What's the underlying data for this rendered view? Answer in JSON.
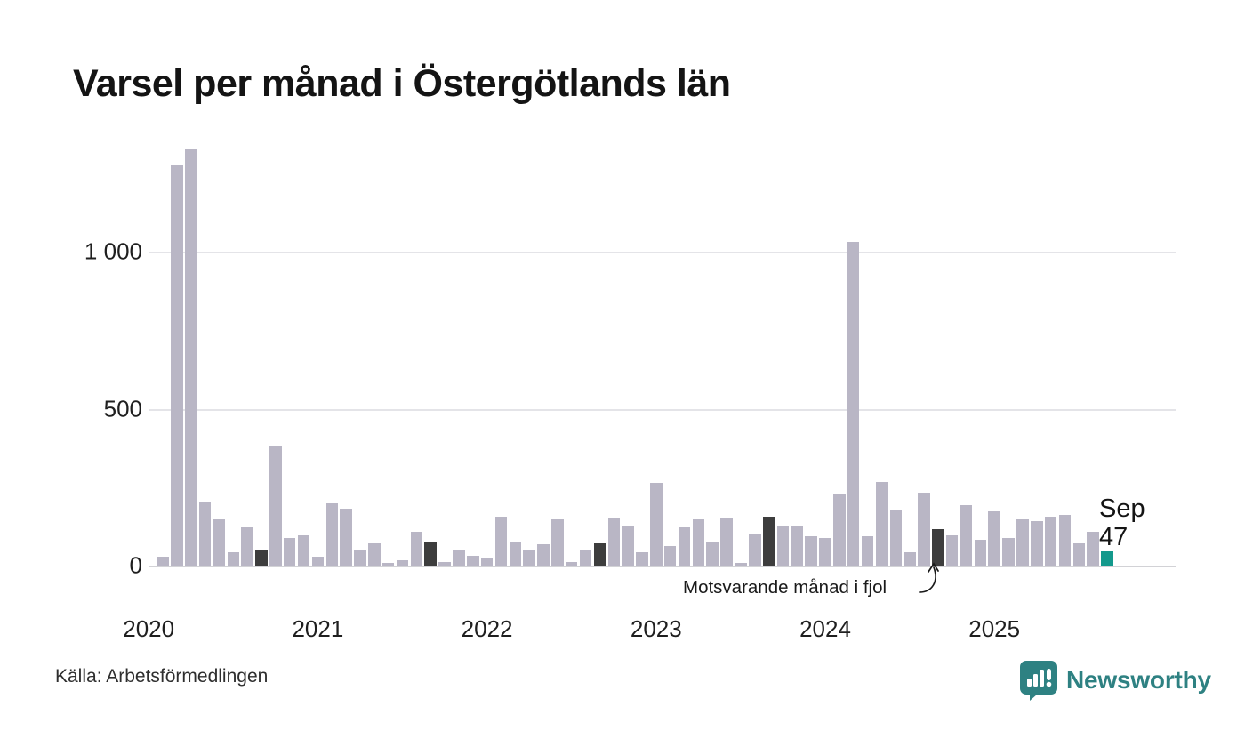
{
  "title": "Varsel per månad i Östergötlands län",
  "source": "Källa: Arbetsförmedlingen",
  "annotation": "Motsvarande månad i fjol",
  "current_point_label": {
    "line1": "Sep",
    "line2": "47"
  },
  "logo": {
    "text": "Newsworthy",
    "icon": "newsworthy-speech-bubble-bar-chart-icon"
  },
  "colors": {
    "bar": "#b9b6c5",
    "bar_dark": "#3d3d3d",
    "bar_current": "#13998c",
    "grid": "#e4e4e8",
    "baseline": "#d2d2d6",
    "text": "#1f1f1f",
    "logo_teal": "#2e8182"
  },
  "chart_data": {
    "type": "bar",
    "title": "Varsel per månad i Östergötlands län",
    "xlabel": "",
    "ylabel": "",
    "ylim": [
      0,
      1400
    ],
    "yticks": [
      0,
      500,
      1000
    ],
    "ytick_labels": [
      "0",
      "500",
      "1 000"
    ],
    "year_labels": [
      "2020",
      "2021",
      "2022",
      "2023",
      "2024",
      "2025"
    ],
    "grid": "horizontal",
    "legend_position": "none",
    "x": [
      "2020-02",
      "2020-03",
      "2020-04",
      "2020-05",
      "2020-06",
      "2020-07",
      "2020-08",
      "2020-09",
      "2020-10",
      "2020-11",
      "2020-12",
      "2021-01",
      "2021-02",
      "2021-03",
      "2021-04",
      "2021-05",
      "2021-06",
      "2021-07",
      "2021-08",
      "2021-09",
      "2021-10",
      "2021-11",
      "2021-12",
      "2022-01",
      "2022-02",
      "2022-03",
      "2022-04",
      "2022-05",
      "2022-06",
      "2022-07",
      "2022-08",
      "2022-09",
      "2022-10",
      "2022-11",
      "2022-12",
      "2023-01",
      "2023-02",
      "2023-03",
      "2023-04",
      "2023-05",
      "2023-06",
      "2023-07",
      "2023-08",
      "2023-09",
      "2023-10",
      "2023-11",
      "2023-12",
      "2024-01",
      "2024-02",
      "2024-03",
      "2024-04",
      "2024-05",
      "2024-06",
      "2024-07",
      "2024-08",
      "2024-09",
      "2024-10",
      "2024-11",
      "2024-12",
      "2025-01",
      "2025-02",
      "2025-03",
      "2025-04",
      "2025-05",
      "2025-06",
      "2025-07",
      "2025-08",
      "2025-09"
    ],
    "values": [
      30,
      1280,
      1330,
      205,
      150,
      45,
      125,
      55,
      385,
      90,
      100,
      30,
      200,
      185,
      50,
      75,
      10,
      20,
      110,
      80,
      15,
      50,
      35,
      25,
      160,
      80,
      50,
      70,
      150,
      15,
      50,
      75,
      155,
      130,
      45,
      265,
      65,
      125,
      150,
      80,
      155,
      10,
      105,
      160,
      130,
      130,
      95,
      90,
      230,
      1035,
      95,
      270,
      180,
      45,
      235,
      120,
      100,
      195,
      85,
      175,
      90,
      150,
      145,
      160,
      165,
      75,
      110,
      47
    ],
    "highlight_dark_months": [
      "2020-09",
      "2021-09",
      "2022-09",
      "2023-09",
      "2024-09"
    ],
    "current_month": "2025-09"
  }
}
